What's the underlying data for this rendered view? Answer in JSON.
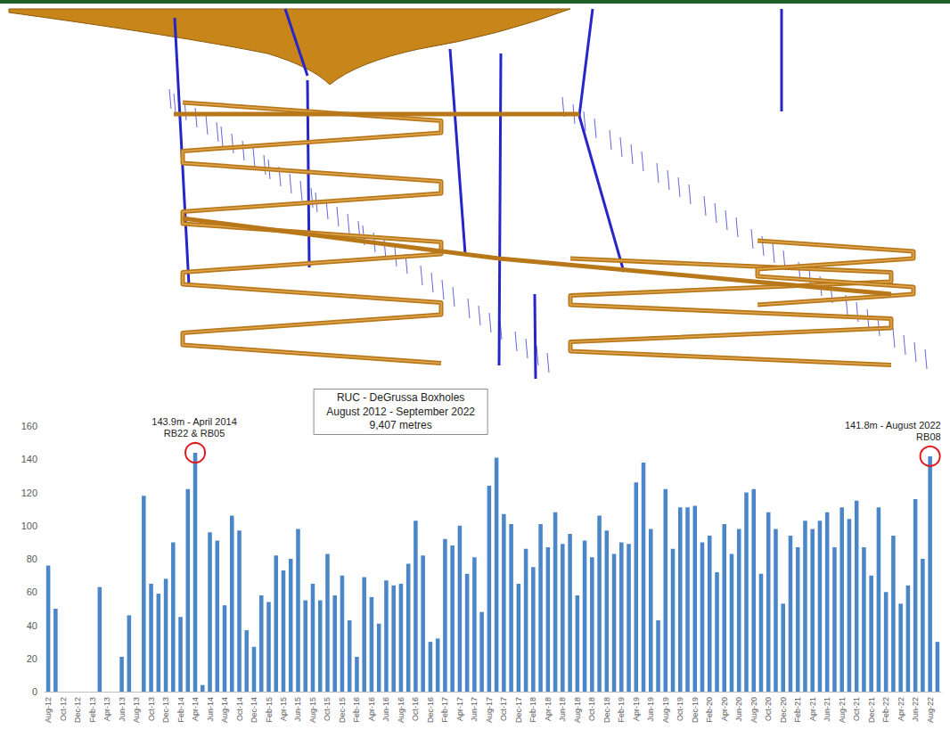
{
  "chart_data": {
    "type": "bar",
    "title": "RUC - DeGrussa Boxholes",
    "subtitle": "August 2012 - September 2022",
    "total": "9,407 metres",
    "categories": [
      "Aug-12",
      null,
      "Oct-12",
      null,
      "Dec-12",
      null,
      "Feb-13",
      null,
      "Apr-13",
      null,
      "Jun-13",
      null,
      "Aug-13",
      null,
      "Oct-13",
      null,
      "Dec-13",
      null,
      "Feb-14",
      null,
      "Apr-14",
      null,
      "Jun-14",
      null,
      "Aug-14",
      null,
      "Oct-14",
      null,
      "Dec-14",
      null,
      "Feb-15",
      null,
      "Apr-15",
      null,
      "Jun-15",
      null,
      "Aug-15",
      null,
      "Oct-15",
      null,
      "Dec-15",
      null,
      "Feb-16",
      null,
      "Apr-16",
      null,
      "Jun-16",
      null,
      "Aug-16",
      null,
      "Oct-16",
      null,
      "Dec-16",
      null,
      "Feb-17",
      null,
      "Apr-17",
      null,
      "Jun-17",
      null,
      "Aug-17",
      null,
      "Oct-17",
      null,
      "Dec-17",
      null,
      "Feb-18",
      null,
      "Apr-18",
      null,
      "Jun-18",
      null,
      "Aug-18",
      null,
      "Oct-18",
      null,
      "Dec-18",
      null,
      "Feb-19",
      null,
      "Apr-19",
      null,
      "Jun-19",
      null,
      "Aug-19",
      null,
      "Oct-19",
      null,
      "Dec-19",
      null,
      "Feb-20",
      null,
      "Apr-20",
      null,
      "Jun-20",
      null,
      "Aug-20",
      null,
      "Oct-20",
      null,
      "Dec-20",
      null,
      "Feb-21",
      null,
      "Apr-21",
      null,
      "Jun-21",
      null,
      "Aug-21",
      null,
      "Oct-21",
      null,
      "Dec-21",
      null,
      "Feb-22",
      null,
      "Apr-22",
      null,
      "Jun-22",
      null,
      "Aug-22",
      null
    ],
    "values": [
      76,
      50,
      0,
      0,
      0,
      0,
      0,
      63,
      0,
      0,
      21,
      46,
      0,
      118,
      65,
      59,
      68,
      90,
      45,
      122,
      143.9,
      4,
      96,
      91,
      52,
      106,
      97,
      37,
      27,
      58,
      54,
      82,
      73,
      80,
      98,
      55,
      65,
      55,
      83,
      58,
      70,
      43,
      21,
      69,
      57,
      41,
      67,
      64,
      65,
      77,
      103,
      82,
      30,
      32,
      92,
      88,
      100,
      71,
      81,
      48,
      124,
      141,
      107,
      101,
      65,
      86,
      75,
      101,
      87,
      108,
      89,
      95,
      58,
      91,
      81,
      106,
      97,
      83,
      90,
      89,
      126,
      138,
      98,
      43,
      122,
      86,
      111,
      111,
      112,
      90,
      94,
      72,
      101,
      83,
      98,
      120,
      122,
      71,
      108,
      98,
      53,
      94,
      87,
      103,
      98,
      103,
      108,
      87,
      111,
      104,
      115,
      87,
      70,
      111,
      60,
      94,
      53,
      64,
      116,
      80,
      141.8,
      30
    ],
    "color": "#4a86c8",
    "ylim": [
      0,
      160
    ],
    "yticks": [
      0,
      20,
      40,
      60,
      80,
      100,
      120,
      140,
      160
    ],
    "grid": false,
    "annotations": [
      {
        "category": "Apr-14",
        "value": 143.9,
        "text": [
          "143.9m - April 2014",
          "RB22 & RB05"
        ],
        "color": "#e31a1c"
      },
      {
        "category": "Aug-22",
        "value": 141.8,
        "text": [
          "141.8m - August 2022",
          "RB08"
        ],
        "color": "#e31a1c"
      }
    ]
  }
}
